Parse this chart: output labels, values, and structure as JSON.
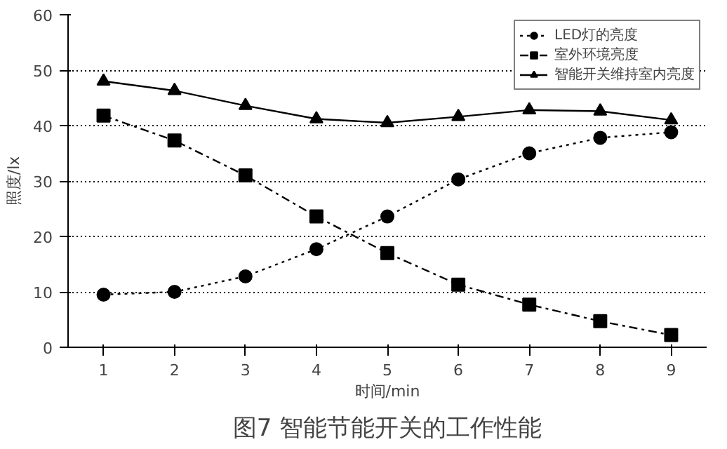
{
  "chart_data": {
    "type": "line",
    "title": "图7 智能节能开关的工作性能",
    "xlabel": "时间/min",
    "ylabel": "照度/lx",
    "categories": [
      "1",
      "2",
      "3",
      "4",
      "5",
      "6",
      "7",
      "8",
      "9"
    ],
    "series": [
      {
        "name": "LED灯的亮度",
        "color": "#000000",
        "marker": "circle",
        "line_style": "dotted",
        "values": [
          9.5,
          10,
          12.8,
          17.7,
          23.6,
          30.3,
          35,
          37.8,
          38.8
        ]
      },
      {
        "name": "室外环境亮度",
        "color": "#000000",
        "marker": "square",
        "line_style": "dashed",
        "values": [
          41.8,
          37.3,
          31,
          23.6,
          17,
          11.3,
          7.7,
          4.7,
          2.2
        ]
      },
      {
        "name": "智能开关维持室内亮度",
        "color": "#000000",
        "marker": "triangle",
        "line_style": "solid",
        "values": [
          48,
          46.3,
          43.6,
          41.2,
          40.5,
          41.6,
          42.8,
          42.6,
          41
        ]
      }
    ],
    "ylim": [
      0,
      60
    ],
    "yticks": [
      0,
      10,
      20,
      30,
      40,
      50,
      60
    ],
    "grid": "y",
    "legend": "top right"
  }
}
